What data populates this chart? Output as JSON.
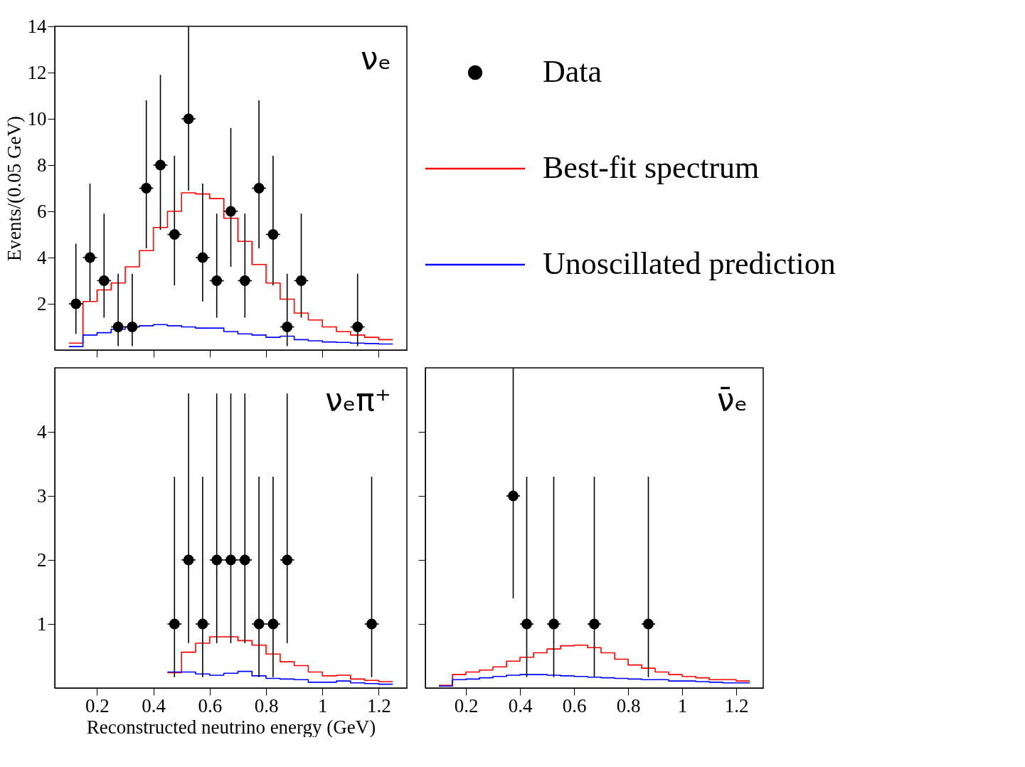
{
  "chart_data": [
    {
      "type": "step",
      "title": "νₑ",
      "ylabel": "Events/(0.05 GeV)",
      "xlim": [
        0.05,
        1.3
      ],
      "ylim": [
        0,
        14
      ],
      "xticks": [
        0.2,
        0.4,
        0.6,
        0.8,
        1,
        1.2
      ],
      "yticks": [
        2,
        4,
        6,
        8,
        10,
        12,
        14
      ],
      "tick_labels": "y",
      "legend": "right",
      "series": [
        {
          "name": "Data",
          "type": "scatter",
          "marker": "circle",
          "color": "#000000",
          "x": [
            0.125,
            0.175,
            0.225,
            0.275,
            0.325,
            0.375,
            0.425,
            0.475,
            0.525,
            0.575,
            0.625,
            0.675,
            0.725,
            0.775,
            0.825,
            0.875,
            0.925,
            1.125
          ],
          "values": [
            2,
            4,
            3,
            1,
            1,
            7,
            8,
            5,
            10,
            4,
            3,
            6,
            3,
            7,
            5,
            1,
            3,
            1
          ],
          "errors": [
            [
              0.7,
              4.6
            ],
            [
              2.1,
              7.2
            ],
            [
              1.4,
              5.9
            ],
            [
              0.17,
              3.3
            ],
            [
              0.17,
              3.3
            ],
            [
              4.4,
              10.8
            ],
            [
              5.2,
              11.9
            ],
            [
              2.8,
              8.4
            ],
            [
              6.9,
              14
            ],
            [
              2.1,
              7.2
            ],
            [
              1.4,
              5.9
            ],
            [
              3.6,
              9.6
            ],
            [
              1.4,
              5.9
            ],
            [
              4.4,
              10.8
            ],
            [
              2.8,
              8.4
            ],
            [
              0.17,
              3.3
            ],
            [
              1.4,
              5.9
            ],
            [
              0.17,
              3.3
            ]
          ],
          "xerrors": [
            0.025,
            0.025,
            0.025,
            0.025,
            0.025,
            0.025,
            0.025,
            0.025,
            0.025,
            0.025,
            0.025,
            0.025,
            0.025,
            0.025,
            0.025,
            0.025,
            0.025,
            0.025
          ]
        },
        {
          "name": "Best-fit spectrum",
          "color": "#ff0000",
          "x": [
            0.1,
            0.15,
            0.2,
            0.25,
            0.3,
            0.35,
            0.4,
            0.45,
            0.5,
            0.55,
            0.6,
            0.65,
            0.7,
            0.75,
            0.8,
            0.85,
            0.9,
            0.95,
            1.0,
            1.05,
            1.1,
            1.15,
            1.2,
            1.25
          ],
          "values": [
            0.3,
            2.1,
            2.6,
            2.9,
            3.6,
            4.3,
            5.3,
            6.0,
            6.8,
            6.75,
            6.55,
            5.7,
            4.7,
            3.7,
            2.9,
            2.2,
            1.6,
            1.3,
            1.0,
            0.8,
            0.65,
            0.55,
            0.45,
            0.45
          ]
        },
        {
          "name": "Unoscillated prediction",
          "color": "#0000ff",
          "x": [
            0.1,
            0.15,
            0.2,
            0.25,
            0.3,
            0.35,
            0.4,
            0.45,
            0.5,
            0.55,
            0.6,
            0.65,
            0.7,
            0.75,
            0.8,
            0.85,
            0.9,
            0.95,
            1.0,
            1.05,
            1.1,
            1.15,
            1.2,
            1.25
          ],
          "values": [
            0.15,
            0.65,
            0.75,
            0.9,
            1.0,
            1.05,
            1.1,
            1.05,
            1.0,
            0.95,
            0.95,
            0.8,
            0.7,
            0.65,
            0.55,
            0.6,
            0.45,
            0.4,
            0.35,
            0.33,
            0.3,
            0.28,
            0.26,
            0.26
          ]
        }
      ]
    },
    {
      "type": "step",
      "title": "νₑπ⁺",
      "xlabel": "Reconstructed neutrino energy (GeV)",
      "xlim": [
        0.05,
        1.3
      ],
      "ylim": [
        0,
        5
      ],
      "xticks": [
        0.2,
        0.4,
        0.6,
        0.8,
        1,
        1.2
      ],
      "yticks": [
        1,
        2,
        3,
        4
      ],
      "series": [
        {
          "type": "scatter",
          "marker": "circle",
          "color": "#000000",
          "x": [
            0.475,
            0.525,
            0.575,
            0.625,
            0.675,
            0.725,
            0.775,
            0.825,
            0.875,
            1.175
          ],
          "values": [
            1,
            2,
            1,
            2,
            2,
            2,
            1,
            1,
            2,
            1
          ],
          "errors": [
            [
              0.17,
              3.3
            ],
            [
              0.7,
              4.6
            ],
            [
              0.17,
              3.3
            ],
            [
              0.7,
              4.6
            ],
            [
              0.7,
              4.6
            ],
            [
              0.7,
              4.6
            ],
            [
              0.17,
              3.3
            ],
            [
              0.17,
              3.3
            ],
            [
              0.7,
              4.6
            ],
            [
              0.17,
              3.3
            ]
          ],
          "xerrors": [
            0.025,
            0.025,
            0.025,
            0.025,
            0.025,
            0.025,
            0.025,
            0.025,
            0.025,
            0.025
          ]
        },
        {
          "color": "#ff0000",
          "x": [
            0.45,
            0.5,
            0.55,
            0.6,
            0.65,
            0.7,
            0.75,
            0.8,
            0.85,
            0.9,
            0.95,
            1.0,
            1.05,
            1.1,
            1.15,
            1.2,
            1.25
          ],
          "values": [
            0.24,
            0.56,
            0.7,
            0.8,
            0.8,
            0.74,
            0.67,
            0.53,
            0.41,
            0.35,
            0.25,
            0.19,
            0.2,
            0.14,
            0.12,
            0.1,
            0.1
          ]
        },
        {
          "color": "#0000ff",
          "x": [
            0.45,
            0.5,
            0.55,
            0.6,
            0.65,
            0.7,
            0.75,
            0.8,
            0.85,
            0.9,
            0.95,
            1.0,
            1.05,
            1.1,
            1.15,
            1.2,
            1.25
          ],
          "values": [
            0.25,
            0.25,
            0.22,
            0.2,
            0.23,
            0.26,
            0.19,
            0.15,
            0.14,
            0.13,
            0.09,
            0.09,
            0.11,
            0.08,
            0.07,
            0.06,
            0.06
          ]
        }
      ]
    },
    {
      "type": "step",
      "title": "ν̄ₑ",
      "xlim": [
        0.05,
        1.3
      ],
      "ylim": [
        0,
        5
      ],
      "xticks": [
        0.2,
        0.4,
        0.6,
        0.8,
        1,
        1.2
      ],
      "yticks": [
        {
          "value": 1,
          "label": null
        },
        {
          "value": 2,
          "label": null
        },
        {
          "value": 3,
          "label": null
        },
        {
          "value": 4,
          "label": null
        }
      ],
      "tick_labels": "x",
      "series": [
        {
          "type": "scatter",
          "marker": "circle",
          "color": "#000000",
          "x": [
            0.375,
            0.425,
            0.525,
            0.675,
            0.875
          ],
          "values": [
            3,
            1,
            1,
            1,
            1
          ],
          "errors": [
            [
              1.4,
              5
            ],
            [
              0.17,
              3.3
            ],
            [
              0.17,
              3.3
            ],
            [
              0.17,
              3.3
            ],
            [
              0.17,
              3.3
            ]
          ],
          "xerrors": [
            0.025,
            0.025,
            0.025,
            0.025,
            0.025
          ]
        },
        {
          "color": "#ff0000",
          "x": [
            0.1,
            0.15,
            0.2,
            0.25,
            0.3,
            0.35,
            0.4,
            0.45,
            0.5,
            0.55,
            0.6,
            0.65,
            0.7,
            0.75,
            0.8,
            0.85,
            0.9,
            0.95,
            1.0,
            1.05,
            1.1,
            1.15,
            1.2,
            1.25
          ],
          "values": [
            0.04,
            0.21,
            0.25,
            0.28,
            0.33,
            0.42,
            0.48,
            0.55,
            0.61,
            0.66,
            0.67,
            0.63,
            0.55,
            0.45,
            0.36,
            0.31,
            0.25,
            0.21,
            0.18,
            0.16,
            0.13,
            0.13,
            0.11,
            0.11
          ]
        },
        {
          "color": "#0000ff",
          "x": [
            0.1,
            0.15,
            0.2,
            0.25,
            0.3,
            0.35,
            0.4,
            0.45,
            0.5,
            0.55,
            0.6,
            0.65,
            0.7,
            0.75,
            0.8,
            0.85,
            0.9,
            0.95,
            1.0,
            1.05,
            1.1,
            1.15,
            1.2,
            1.25
          ],
          "values": [
            0.03,
            0.13,
            0.14,
            0.16,
            0.18,
            0.2,
            0.21,
            0.21,
            0.2,
            0.19,
            0.18,
            0.17,
            0.16,
            0.15,
            0.14,
            0.13,
            0.13,
            0.11,
            0.11,
            0.1,
            0.09,
            0.08,
            0.08,
            0.08
          ]
        }
      ]
    }
  ]
}
